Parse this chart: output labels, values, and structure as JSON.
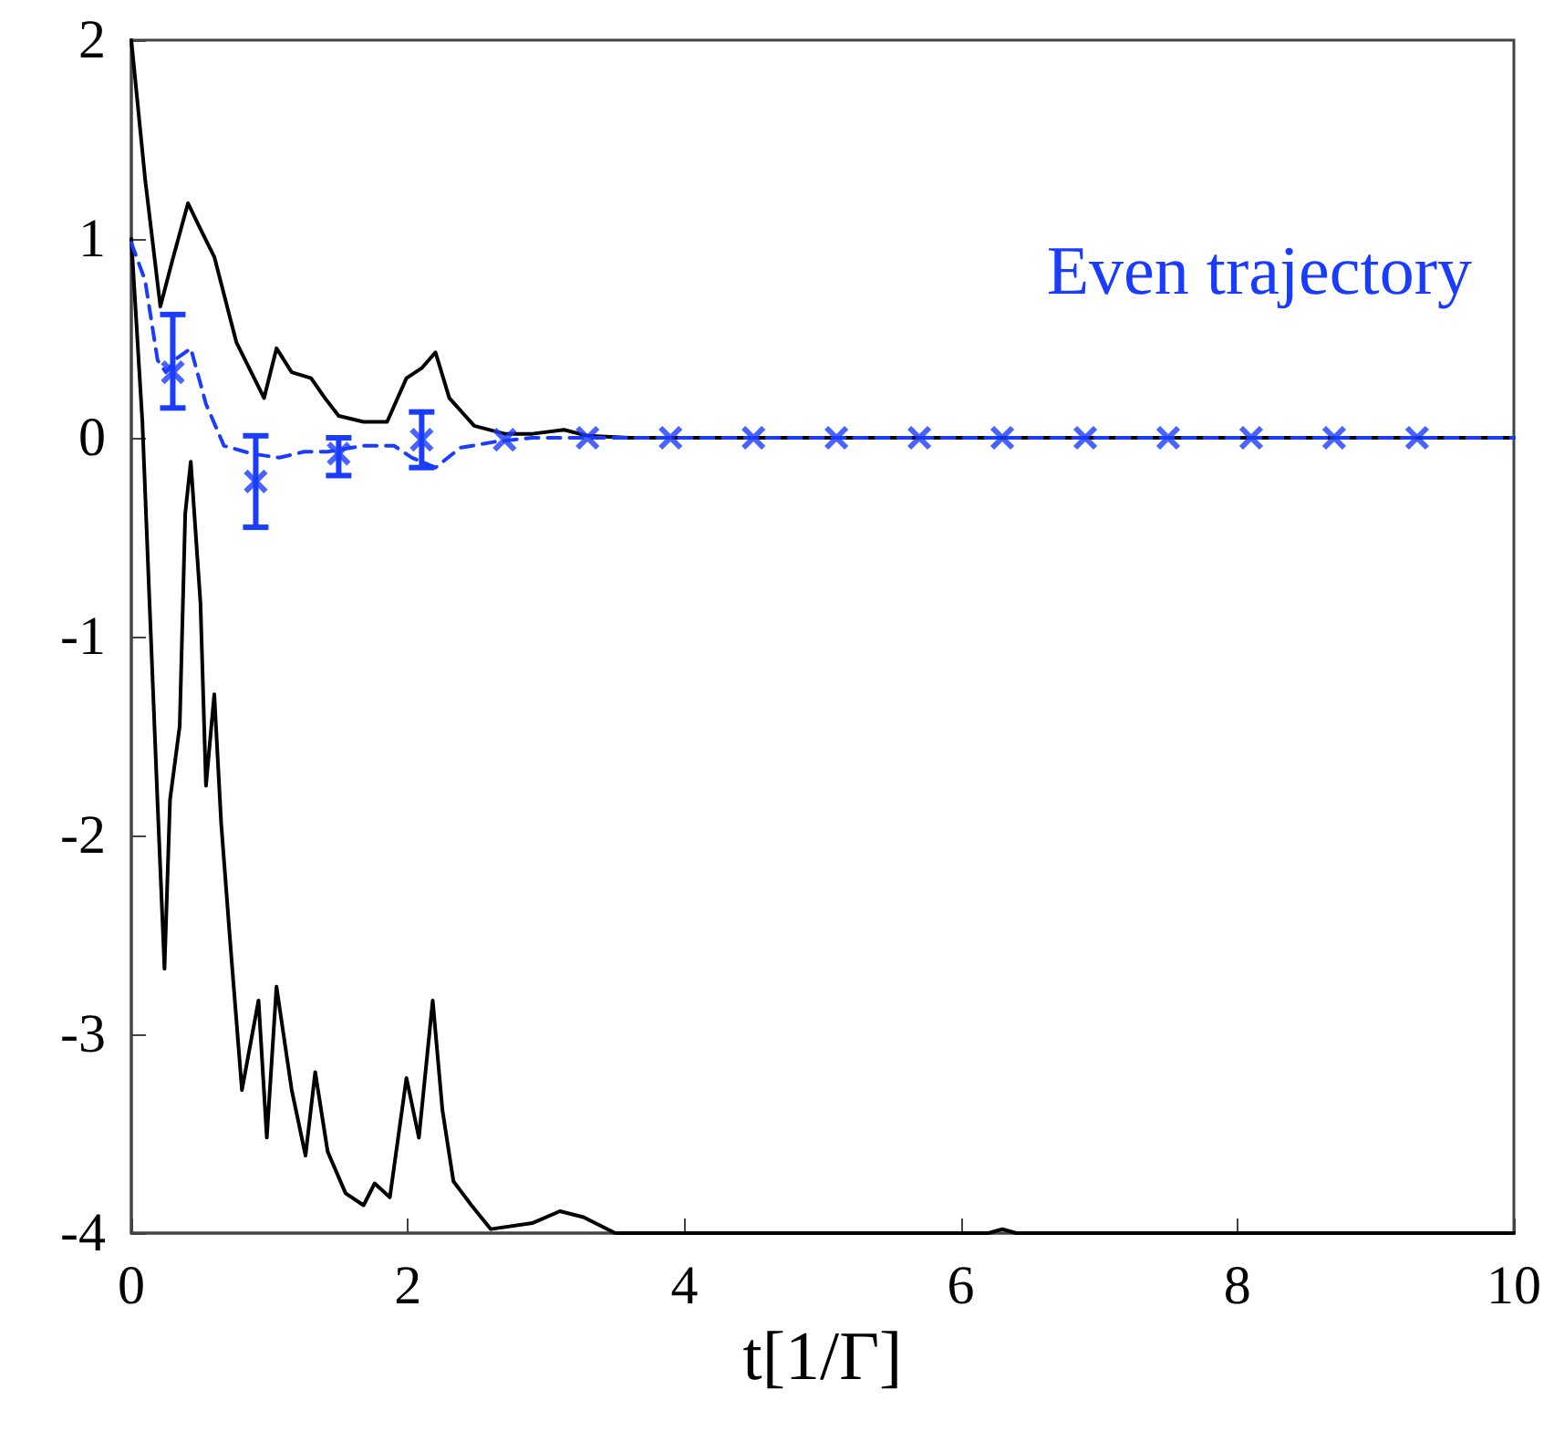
{
  "chart_data": {
    "type": "line",
    "xlabel": "t[1/Γ]",
    "xlim": [
      0,
      10
    ],
    "xticks": [
      0,
      2,
      4,
      6,
      8,
      10
    ],
    "ylim": [
      -4,
      2
    ],
    "yticks": [
      -4,
      -3,
      -2,
      -1,
      0,
      1,
      2
    ],
    "grid": false,
    "legend": "top right",
    "series": [
      {
        "color": "#000000",
        "marker": "none",
        "line_style": "solid",
        "x": [
          0,
          0.1,
          0.21,
          0.3,
          0.41,
          0.5,
          0.6,
          0.76,
          0.96,
          1.05,
          1.16,
          1.3,
          1.4,
          1.5,
          1.68,
          1.85,
          1.99,
          2.1,
          2.2,
          2.3,
          2.48,
          2.7,
          2.9,
          3.13,
          3.3,
          3.6,
          4,
          10
        ],
        "values": [
          2.0,
          1.3,
          0.66,
          0.9,
          1.18,
          1.05,
          0.91,
          0.48,
          0.2,
          0.45,
          0.33,
          0.3,
          0.2,
          0.11,
          0.08,
          0.08,
          0.3,
          0.35,
          0.43,
          0.2,
          0.06,
          0.02,
          0.02,
          0.04,
          0.01,
          0.0,
          0.0,
          0.0
        ]
      },
      {
        "color": "#000000",
        "marker": "none",
        "line_style": "solid",
        "x": [
          0,
          0.08,
          0.13,
          0.19,
          0.24,
          0.28,
          0.35,
          0.39,
          0.43,
          0.5,
          0.54,
          0.6,
          0.65,
          0.72,
          0.8,
          0.92,
          0.98,
          1.05,
          1.16,
          1.26,
          1.33,
          1.42,
          1.55,
          1.68,
          1.76,
          1.87,
          1.99,
          2.08,
          2.18,
          2.25,
          2.33,
          2.46,
          2.6,
          2.9,
          3.1,
          3.27,
          3.5,
          6.2,
          6.3,
          6.4,
          10
        ],
        "values": [
          1.0,
          0.08,
          -0.8,
          -1.84,
          -2.67,
          -1.82,
          -1.45,
          -0.38,
          -0.12,
          -0.83,
          -1.75,
          -1.29,
          -1.94,
          -2.58,
          -3.28,
          -2.83,
          -3.52,
          -2.76,
          -3.28,
          -3.61,
          -3.19,
          -3.59,
          -3.8,
          -3.86,
          -3.75,
          -3.82,
          -3.22,
          -3.52,
          -2.83,
          -3.38,
          -3.74,
          -3.86,
          -3.98,
          -3.95,
          -3.89,
          -3.92,
          -4.0,
          -4.0,
          -3.98,
          -4.0,
          -4.0
        ]
      },
      {
        "name": "Even trajectory",
        "color": "#1a3cff",
        "marker": "none",
        "line_style": "dashed",
        "x": [
          0,
          0.1,
          0.19,
          0.25,
          0.33,
          0.43,
          0.54,
          0.67,
          0.87,
          1.07,
          1.25,
          1.42,
          1.68,
          1.9,
          2.03,
          2.2,
          2.38,
          2.63,
          2.9,
          10
        ],
        "values": [
          0.98,
          0.79,
          0.39,
          0.33,
          0.4,
          0.45,
          0.17,
          -0.04,
          -0.08,
          -0.1,
          -0.07,
          -0.07,
          -0.04,
          -0.04,
          -0.1,
          -0.15,
          -0.05,
          -0.02,
          0.0,
          0.0
        ]
      },
      {
        "type": "scatter",
        "color": "#1a3cff",
        "marker": "cross",
        "x": [
          0.3,
          0.9,
          1.5,
          2.1,
          2.7,
          3.3,
          3.9,
          4.5,
          5.1,
          5.7,
          6.3,
          6.9,
          7.5,
          8.1,
          8.7,
          9.3
        ],
        "values": [
          0.33,
          -0.22,
          -0.08,
          -0.01,
          -0.01,
          0.0,
          0.0,
          0.0,
          0.0,
          0.0,
          0.0,
          0.0,
          0.0,
          0.0,
          0.0,
          0.0
        ],
        "errors": [
          [
            0.15,
            0.62
          ],
          [
            -0.45,
            0.01
          ],
          [
            -0.19,
            0.0
          ],
          [
            -0.15,
            0.13
          ],
          null,
          null,
          null,
          null,
          null,
          null,
          null,
          null,
          null,
          null,
          null,
          null
        ]
      }
    ]
  }
}
